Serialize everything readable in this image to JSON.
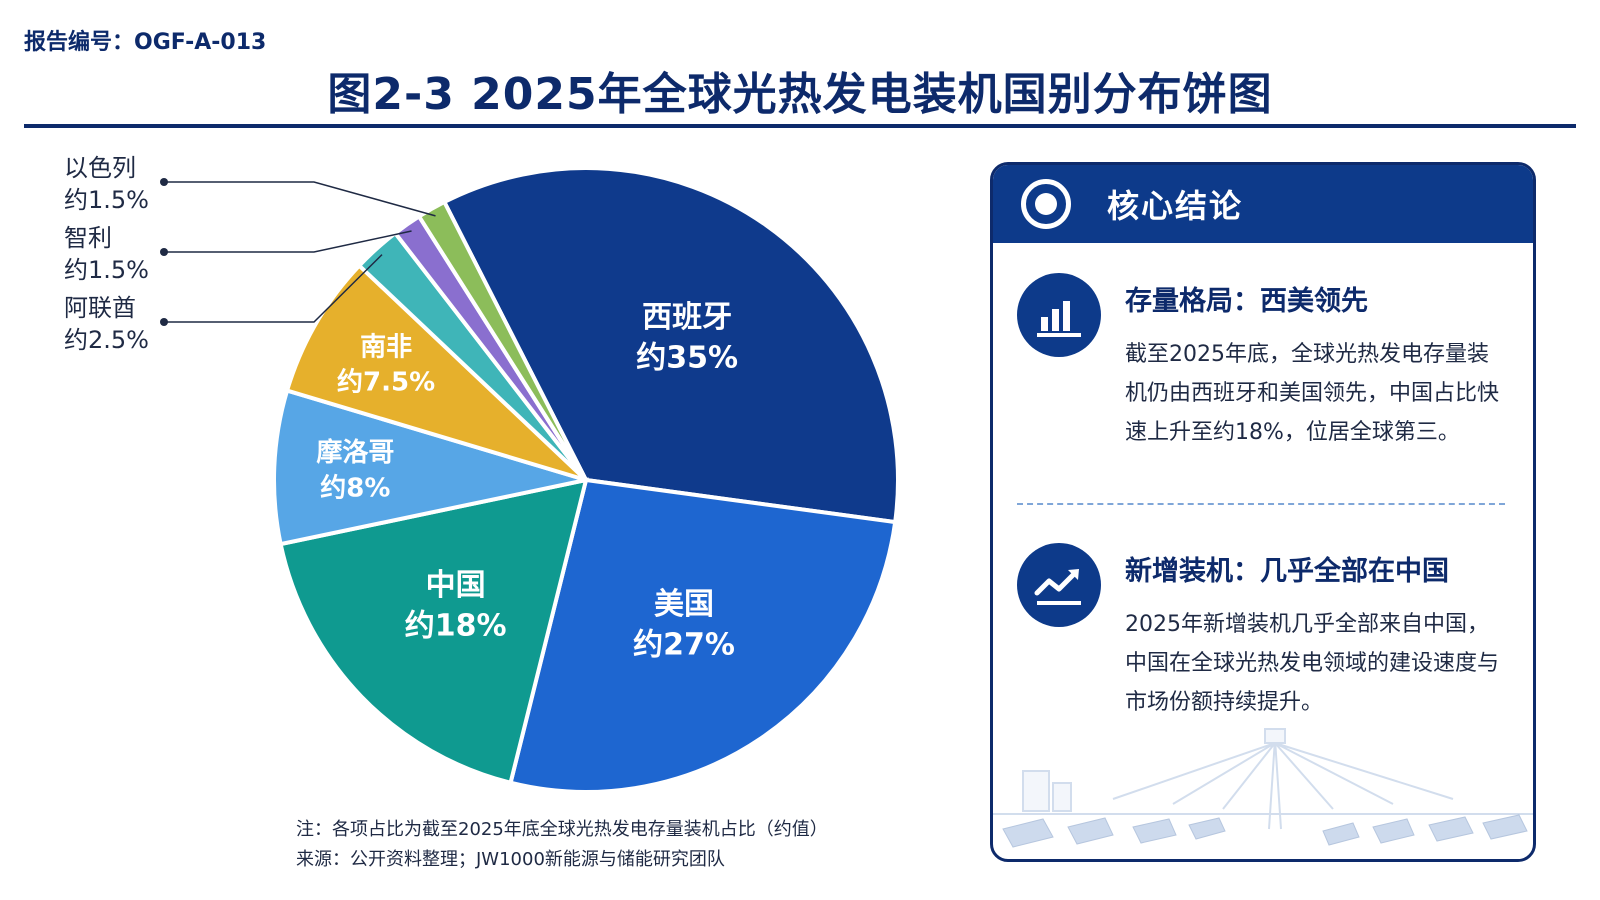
{
  "report_no": "报告编号：OGF-A-013",
  "title": "图2-3  2025年全球光热发电装机国别分布饼图",
  "chart_data": {
    "type": "pie",
    "unit": "%",
    "slices": [
      {
        "name": "西班牙",
        "value": 35,
        "label": "约35%",
        "color": "#0f3a8c"
      },
      {
        "name": "美国",
        "value": 27,
        "label": "约27%",
        "color": "#1e66d0"
      },
      {
        "name": "中国",
        "value": 18,
        "label": "约18%",
        "color": "#0f9a90"
      },
      {
        "name": "摩洛哥",
        "value": 8,
        "label": "约8%",
        "color": "#57a6e6"
      },
      {
        "name": "南非",
        "value": 7.5,
        "label": "约7.5%",
        "color": "#e6b02c"
      },
      {
        "name": "阿联酋",
        "value": 2.5,
        "label": "约2.5%",
        "color": "#3fb5b8"
      },
      {
        "name": "智利",
        "value": 1.5,
        "label": "约1.5%",
        "color": "#8a6fcf"
      },
      {
        "name": "以色列",
        "value": 1.5,
        "label": "约1.5%",
        "color": "#8cbd5a"
      }
    ]
  },
  "notes": {
    "note": "注：各项占比为截至2025年底全球光热发电存量装机占比（约值）",
    "source": "来源：公开资料整理；JW1000新能源与储能研究团队"
  },
  "panel": {
    "title": "核心结论",
    "findings": [
      {
        "icon": "bar-chart-icon",
        "heading": "存量格局：西美领先",
        "text": "截至2025年底，全球光热发电存量装机仍由西班牙和美国领先，中国占比快速上升至约18%，位居全球第三。"
      },
      {
        "icon": "trend-up-icon",
        "heading": "新增装机：几乎全部在中国",
        "text": "2025年新增装机几乎全部来自中国，中国在全球光热发电领域的建设速度与市场份额持续提升。"
      }
    ]
  },
  "colors": {
    "primary": "#0d2a6b",
    "panel_header": "#0d3a8a"
  }
}
